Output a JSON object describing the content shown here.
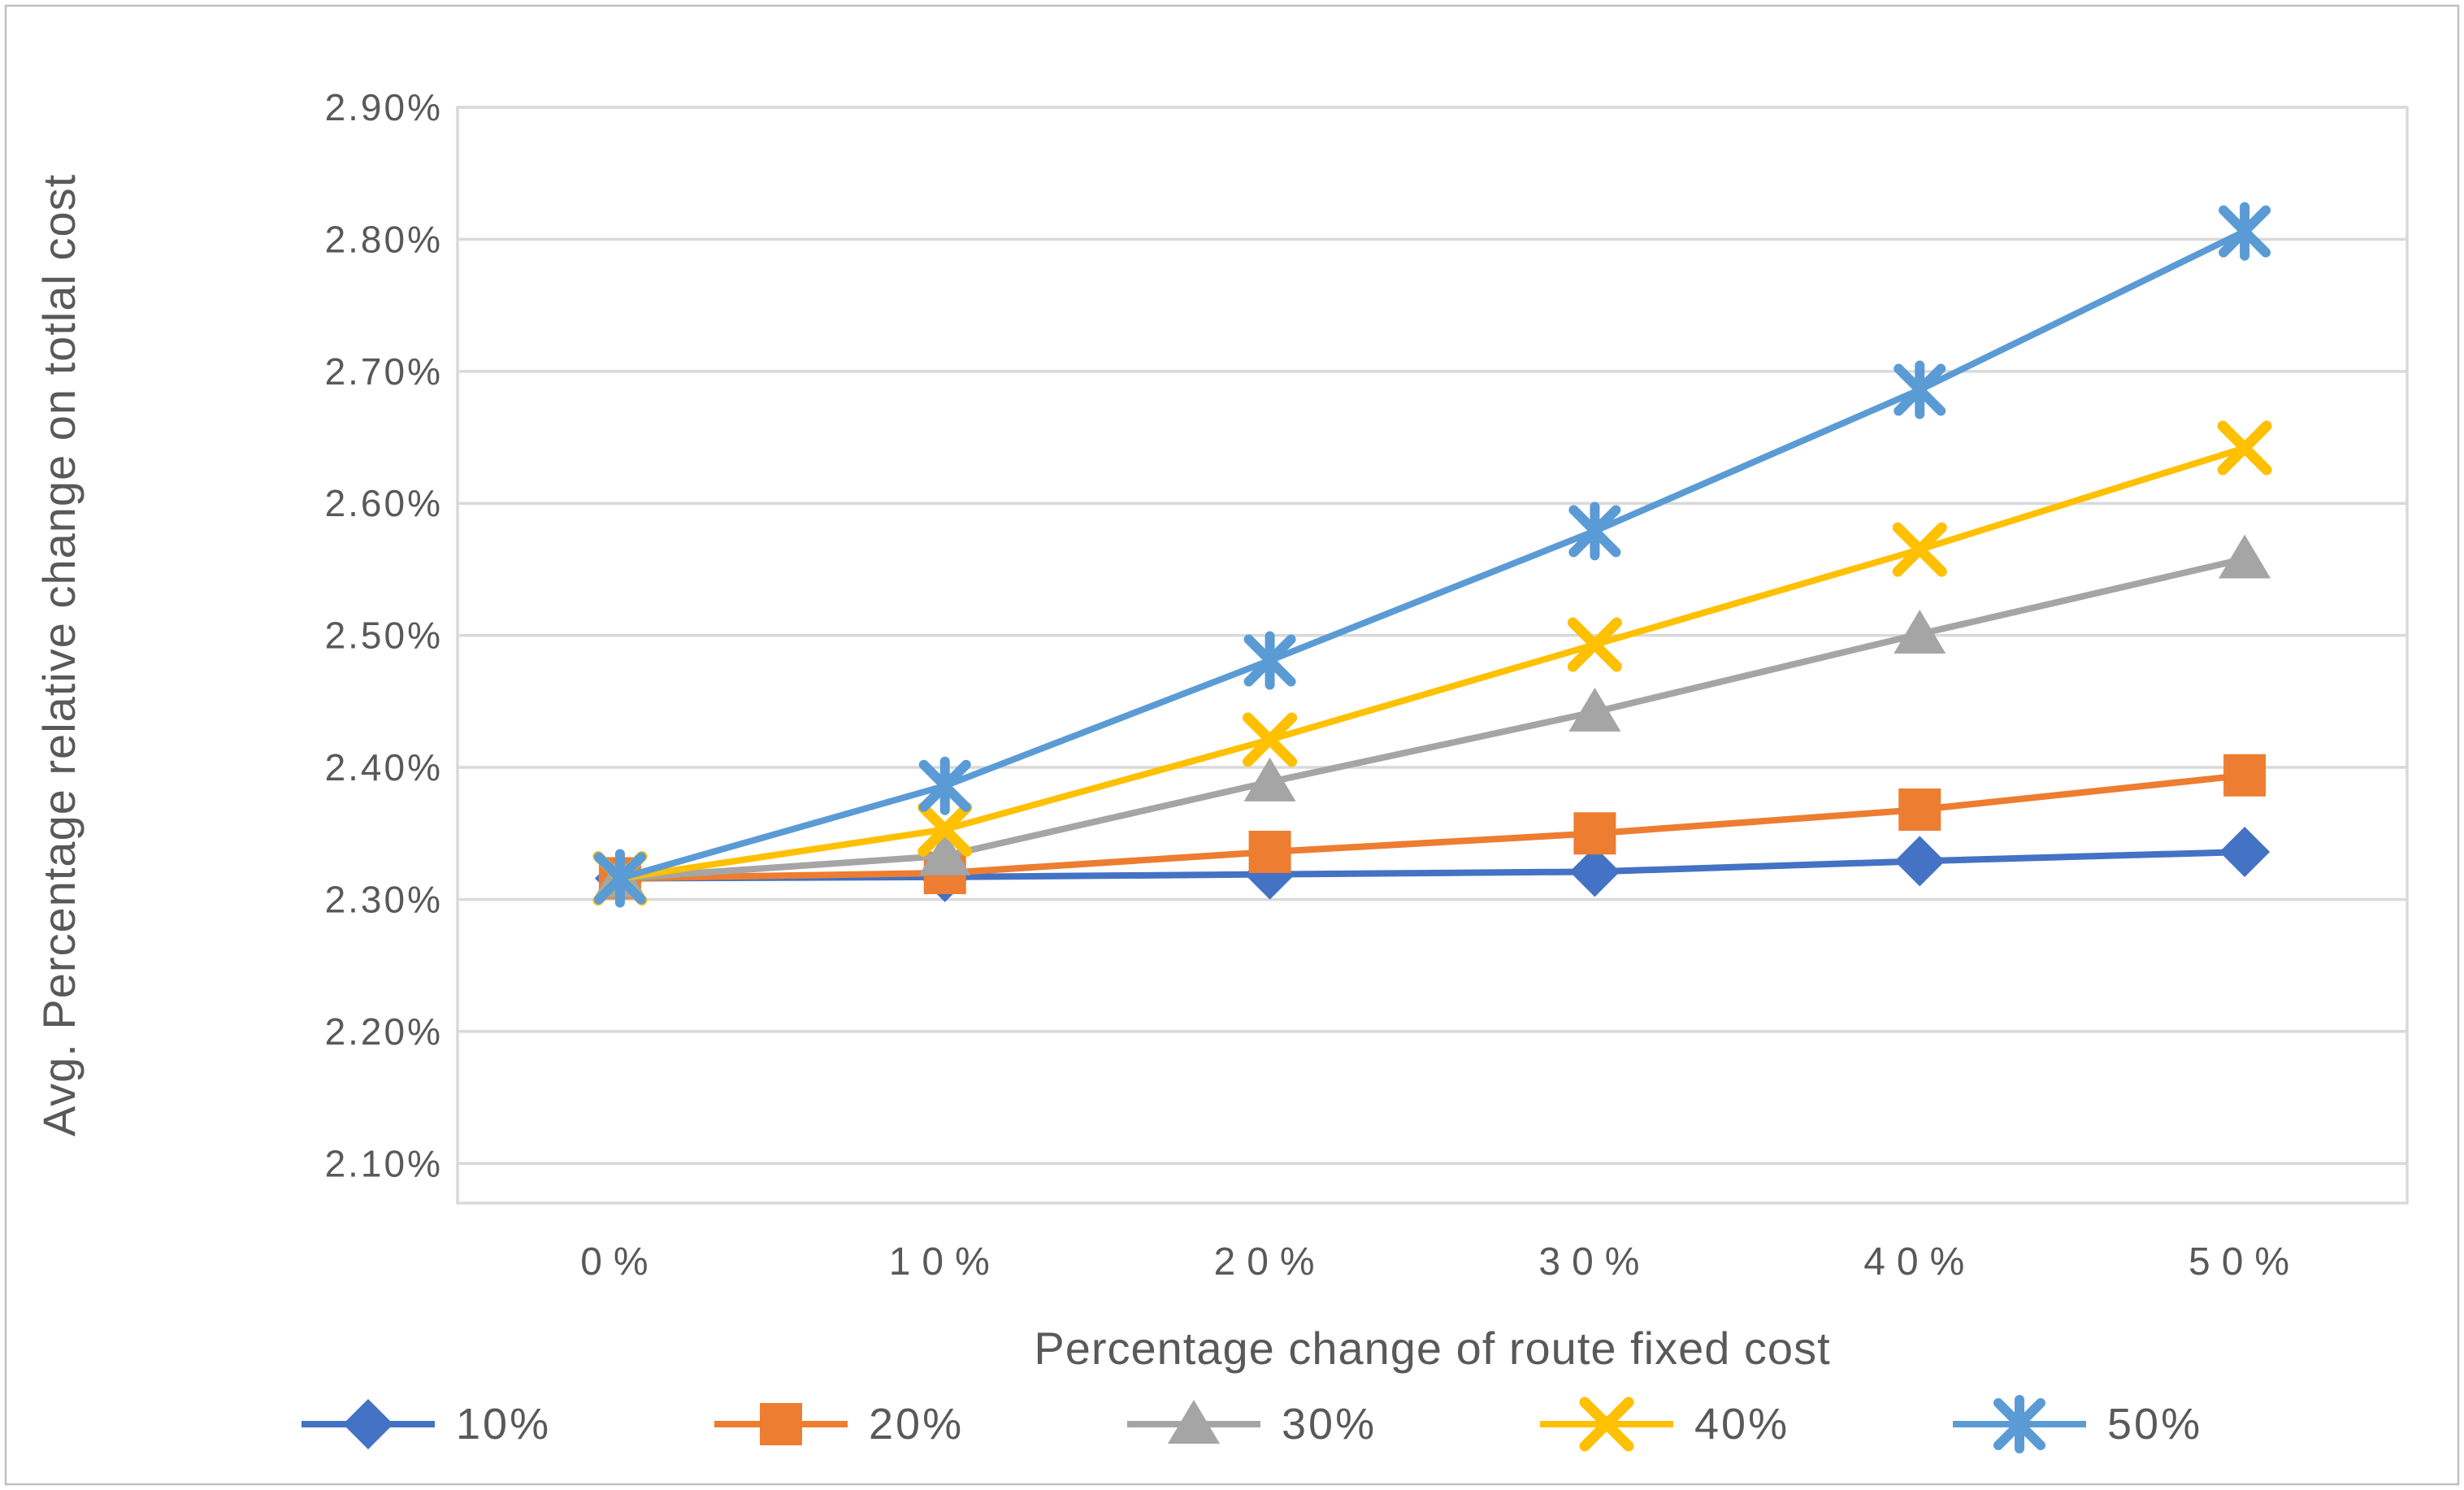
{
  "figure": {
    "background": "#FFFFFF",
    "frame_color": "#C0C0C0"
  },
  "chart_data": {
    "type": "line",
    "title": "",
    "xlabel": "Percentage change of route fixed cost",
    "ylabel": "Avg. Percentage relative change on totlal cost",
    "unit": "percent",
    "grid": true,
    "legend_position": "bottom",
    "text_color": "#595959",
    "gridline_color": "#D9D9D9",
    "categories": [
      "0%",
      "10%",
      "20%",
      "30%",
      "40%",
      "50%"
    ],
    "y_tick_labels": [
      "2.10%",
      "2.20%",
      "2.30%",
      "2.40%",
      "2.50%",
      "2.60%",
      "2.70%",
      "2.80%",
      "2.90%"
    ],
    "y_tick_values": [
      2.1,
      2.2,
      2.3,
      2.4,
      2.5,
      2.6,
      2.7,
      2.8,
      2.9
    ],
    "ylim": [
      2.07,
      2.9
    ],
    "series": [
      {
        "name": "10%",
        "color": "#4472C4",
        "marker": "diamond",
        "values": [
          2.316,
          2.317,
          2.319,
          2.321,
          2.329,
          2.336
        ]
      },
      {
        "name": "20%",
        "color": "#ED7D31",
        "marker": "square",
        "values": [
          2.316,
          2.32,
          2.336,
          2.35,
          2.368,
          2.394
        ]
      },
      {
        "name": "30%",
        "color": "#A5A5A5",
        "marker": "triangle",
        "values": [
          2.316,
          2.333,
          2.389,
          2.442,
          2.501,
          2.558
        ]
      },
      {
        "name": "40%",
        "color": "#FFC000",
        "marker": "x",
        "values": [
          2.316,
          2.353,
          2.421,
          2.493,
          2.565,
          2.642
        ]
      },
      {
        "name": "50%",
        "color": "#5B9BD5",
        "marker": "asterisk",
        "values": [
          2.316,
          2.386,
          2.481,
          2.579,
          2.686,
          2.806
        ]
      }
    ]
  }
}
